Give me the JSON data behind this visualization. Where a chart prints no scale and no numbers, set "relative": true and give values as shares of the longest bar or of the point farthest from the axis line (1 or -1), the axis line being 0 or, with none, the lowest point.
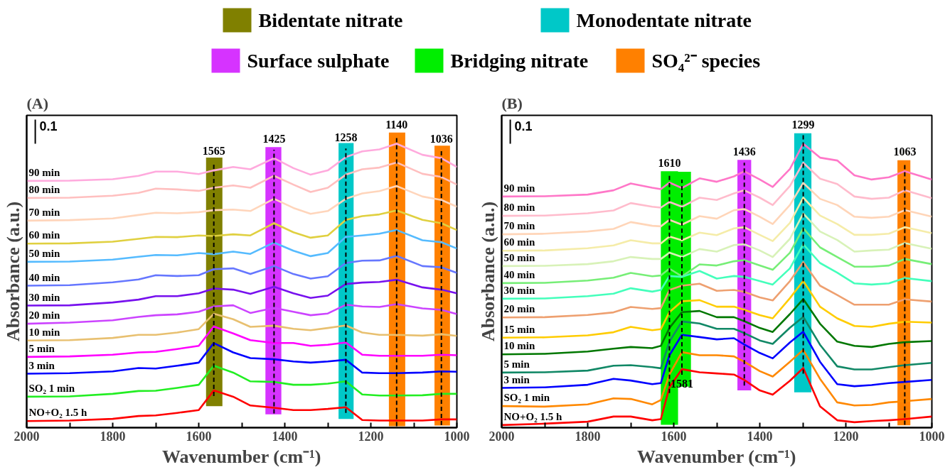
{
  "chart_data": [
    {
      "type": "line",
      "title": "(A)",
      "xlabel": "Wavenumber (cm⁻¹)",
      "ylabel": "Absorbance (a.u.)",
      "annotations": [
        "0.1"
      ],
      "relative": true,
      "grid": false,
      "legend": "top",
      "line_style": "solid",
      "xlim": [
        2000,
        1000
      ],
      "xticks": [
        2000,
        {
          "value": 1900,
          "label": null
        },
        1800,
        {
          "value": 1700,
          "label": null
        },
        1600,
        {
          "value": 1500,
          "label": null
        },
        1400,
        {
          "value": 1300,
          "label": null
        },
        1200,
        {
          "value": 1100,
          "label": null
        },
        1000
      ],
      "x": [
        2000,
        1900,
        1800,
        1740,
        1700,
        1650,
        1600,
        1565,
        1520,
        1480,
        1425,
        1380,
        1340,
        1300,
        1258,
        1220,
        1180,
        1140,
        1080,
        1036,
        1000
      ],
      "series": [
        {
          "name": "90 min",
          "color": "#ffaadd",
          "values": [
            0.869,
            0.87,
            0.875,
            0.887,
            0.902,
            0.902,
            0.893,
            0.906,
            0.918,
            0.91,
            0.949,
            0.914,
            0.891,
            0.906,
            0.953,
            0.973,
            0.98,
            1.0,
            0.961,
            0.949,
            0.918
          ]
        },
        {
          "name": "80 min",
          "color": "#ffbfbf",
          "values": [
            0.809,
            0.81,
            0.817,
            0.827,
            0.842,
            0.839,
            0.834,
            0.845,
            0.853,
            0.845,
            0.887,
            0.856,
            0.83,
            0.845,
            0.891,
            0.91,
            0.916,
            0.934,
            0.894,
            0.883,
            0.856
          ]
        },
        {
          "name": "70 min",
          "color": "#ffd5bb",
          "values": [
            0.729,
            0.731,
            0.737,
            0.749,
            0.757,
            0.755,
            0.759,
            0.766,
            0.768,
            0.763,
            0.806,
            0.774,
            0.753,
            0.763,
            0.806,
            0.825,
            0.833,
            0.851,
            0.814,
            0.802,
            0.778
          ]
        },
        {
          "name": "60 min",
          "color": "#e0d040",
          "values": [
            0.648,
            0.649,
            0.655,
            0.665,
            0.672,
            0.671,
            0.677,
            0.675,
            0.681,
            0.677,
            0.72,
            0.688,
            0.669,
            0.677,
            0.732,
            0.745,
            0.751,
            0.765,
            0.732,
            0.72,
            0.696
          ]
        },
        {
          "name": "50 min",
          "color": "#55bbff",
          "values": [
            0.584,
            0.585,
            0.592,
            0.602,
            0.608,
            0.607,
            0.615,
            0.611,
            0.62,
            0.612,
            0.652,
            0.623,
            0.604,
            0.615,
            0.672,
            0.677,
            0.683,
            0.696,
            0.66,
            0.653,
            0.631
          ]
        },
        {
          "name": "40 min",
          "color": "#6677ff",
          "values": [
            0.5,
            0.502,
            0.512,
            0.522,
            0.537,
            0.534,
            0.537,
            0.558,
            0.561,
            0.541,
            0.569,
            0.541,
            0.525,
            0.533,
            0.58,
            0.588,
            0.589,
            0.605,
            0.569,
            0.565,
            0.545
          ]
        },
        {
          "name": "30 min",
          "color": "#7711ee",
          "values": [
            0.43,
            0.431,
            0.441,
            0.451,
            0.463,
            0.463,
            0.473,
            0.49,
            0.486,
            0.471,
            0.496,
            0.473,
            0.457,
            0.465,
            0.506,
            0.511,
            0.513,
            0.521,
            0.494,
            0.486,
            0.473
          ]
        },
        {
          "name": "20 min",
          "color": "#cc44ff",
          "values": [
            0.366,
            0.37,
            0.378,
            0.39,
            0.396,
            0.399,
            0.408,
            0.427,
            0.431,
            0.404,
            0.422,
            0.408,
            0.396,
            0.402,
            0.433,
            0.427,
            0.425,
            0.435,
            0.42,
            0.415,
            0.4
          ]
        },
        {
          "name": "10 min",
          "color": "#e8c070",
          "values": [
            0.307,
            0.308,
            0.316,
            0.327,
            0.327,
            0.335,
            0.347,
            0.401,
            0.382,
            0.355,
            0.359,
            0.348,
            0.343,
            0.351,
            0.36,
            0.335,
            0.327,
            0.327,
            0.324,
            0.329,
            0.323
          ]
        },
        {
          "name": "5 min",
          "color": "#ff00ff",
          "values": [
            0.249,
            0.251,
            0.257,
            0.265,
            0.267,
            0.277,
            0.288,
            0.356,
            0.332,
            0.308,
            0.298,
            0.298,
            0.288,
            0.292,
            0.3,
            0.257,
            0.253,
            0.253,
            0.253,
            0.257,
            0.255
          ]
        },
        {
          "name": "3 min",
          "color": "#0000ff",
          "values": [
            0.19,
            0.192,
            0.198,
            0.21,
            0.208,
            0.218,
            0.229,
            0.298,
            0.265,
            0.245,
            0.241,
            0.233,
            0.229,
            0.233,
            0.239,
            0.194,
            0.192,
            0.192,
            0.194,
            0.198,
            0.197
          ]
        },
        {
          "name": "SO₂ 1 min",
          "color": "#22ee22",
          "values": [
            0.109,
            0.11,
            0.119,
            0.129,
            0.13,
            0.14,
            0.151,
            0.218,
            0.194,
            0.163,
            0.161,
            0.151,
            0.151,
            0.155,
            0.163,
            0.117,
            0.113,
            0.113,
            0.114,
            0.119,
            0.119
          ]
        },
        {
          "name": "NO+O₂ 1.5 h",
          "color": "#ff0000",
          "values": [
            0.023,
            0.025,
            0.031,
            0.041,
            0.043,
            0.052,
            0.062,
            0.131,
            0.109,
            0.078,
            0.07,
            0.062,
            0.062,
            0.066,
            0.072,
            0.027,
            0.025,
            0.025,
            0.025,
            0.029,
            0.029
          ]
        }
      ],
      "bands": [
        {
          "axis": "x",
          "from": 1583,
          "to": 1545,
          "label": "Bidentate nitrate",
          "color": "#808000"
        },
        {
          "axis": "x",
          "from": 1275,
          "to": 1240,
          "label": "Monodentate nitrate",
          "color": "#00c8c8"
        },
        {
          "axis": "x",
          "from": 1445,
          "to": 1408,
          "label": "Surface sulphate",
          "color": "#d633ff"
        },
        {
          "axis": "x",
          "from": 1158,
          "to": 1120,
          "color": "#ff8000"
        },
        {
          "axis": "x",
          "from": 1052,
          "to": 1016,
          "color": "#ff8000"
        }
      ],
      "ref_lines": [
        {
          "axis": "x",
          "value": 1565,
          "label": "1565",
          "color": "#000000",
          "line_style": "dashed"
        },
        {
          "axis": "x",
          "value": 1425,
          "label": "1425",
          "color": "#000000",
          "line_style": "dashed"
        },
        {
          "axis": "x",
          "value": 1258,
          "label": "1258",
          "color": "#000000",
          "line_style": "dashed"
        },
        {
          "axis": "x",
          "value": 1140,
          "label": "1140",
          "color": "#000000",
          "line_style": "dashed"
        },
        {
          "axis": "x",
          "value": 1036,
          "label": "1036",
          "color": "#000000",
          "line_style": "dashed"
        }
      ]
    },
    {
      "type": "line",
      "title": "(B)",
      "xlabel": "Wavenumber (cm⁻¹)",
      "ylabel": "Absorbance (a.u.)",
      "annotations": [
        "0.1"
      ],
      "relative": true,
      "grid": false,
      "legend": "top",
      "line_style": "solid",
      "xlim": [
        2000,
        1000
      ],
      "xticks": [
        2000,
        {
          "value": 1900,
          "label": null
        },
        1800,
        {
          "value": 1700,
          "label": null
        },
        1600,
        {
          "value": 1500,
          "label": null
        },
        1400,
        {
          "value": 1300,
          "label": null
        },
        1200,
        {
          "value": 1100,
          "label": null
        },
        1000
      ],
      "x": [
        2000,
        1900,
        1800,
        1740,
        1700,
        1650,
        1630,
        1610,
        1581,
        1540,
        1500,
        1460,
        1436,
        1400,
        1370,
        1330,
        1299,
        1260,
        1220,
        1180,
        1140,
        1100,
        1063,
        1000
      ],
      "series": [
        {
          "name": "90 min",
          "color": "#ff77c8",
          "values": [
            0.814,
            0.815,
            0.821,
            0.836,
            0.86,
            0.845,
            0.84,
            0.863,
            0.844,
            0.878,
            0.866,
            0.885,
            0.903,
            0.874,
            0.848,
            0.911,
            1.0,
            0.951,
            0.941,
            0.889,
            0.874,
            0.882,
            0.903,
            0.874
          ]
        },
        {
          "name": "80 min",
          "color": "#ffbbcc",
          "values": [
            0.746,
            0.747,
            0.755,
            0.765,
            0.791,
            0.778,
            0.775,
            0.795,
            0.778,
            0.81,
            0.802,
            0.825,
            0.836,
            0.81,
            0.784,
            0.851,
            0.933,
            0.877,
            0.858,
            0.814,
            0.806,
            0.81,
            0.836,
            0.808
          ]
        },
        {
          "name": "70 min",
          "color": "#ffd5b8",
          "values": [
            0.681,
            0.683,
            0.691,
            0.7,
            0.724,
            0.711,
            0.709,
            0.732,
            0.715,
            0.745,
            0.736,
            0.766,
            0.77,
            0.743,
            0.717,
            0.784,
            0.862,
            0.806,
            0.784,
            0.743,
            0.739,
            0.743,
            0.766,
            0.743
          ]
        },
        {
          "name": "60 min",
          "color": "#f5eca8",
          "values": [
            0.623,
            0.624,
            0.632,
            0.642,
            0.66,
            0.649,
            0.649,
            0.673,
            0.66,
            0.687,
            0.678,
            0.702,
            0.706,
            0.679,
            0.657,
            0.721,
            0.81,
            0.747,
            0.717,
            0.679,
            0.679,
            0.683,
            0.706,
            0.685
          ]
        },
        {
          "name": "50 min",
          "color": "#d8f2b8",
          "values": [
            0.569,
            0.57,
            0.576,
            0.586,
            0.601,
            0.594,
            0.594,
            0.616,
            0.601,
            0.629,
            0.62,
            0.643,
            0.646,
            0.624,
            0.601,
            0.665,
            0.754,
            0.691,
            0.661,
            0.62,
            0.624,
            0.627,
            0.65,
            0.63
          ]
        },
        {
          "name": "40 min",
          "color": "#77ee77",
          "values": [
            0.509,
            0.51,
            0.518,
            0.528,
            0.545,
            0.533,
            0.536,
            0.56,
            0.533,
            0.575,
            0.571,
            0.586,
            0.59,
            0.571,
            0.556,
            0.616,
            0.702,
            0.635,
            0.601,
            0.567,
            0.567,
            0.571,
            0.594,
            0.576
          ]
        },
        {
          "name": "30 min",
          "color": "#44ffbb",
          "values": [
            0.454,
            0.455,
            0.463,
            0.472,
            0.491,
            0.479,
            0.485,
            0.534,
            0.531,
            0.552,
            0.525,
            0.534,
            0.531,
            0.516,
            0.504,
            0.561,
            0.646,
            0.58,
            0.546,
            0.508,
            0.504,
            0.508,
            0.527,
            0.516
          ]
        },
        {
          "name": "20 min",
          "color": "#eea070",
          "values": [
            0.388,
            0.389,
            0.397,
            0.406,
            0.425,
            0.418,
            0.421,
            0.485,
            0.5,
            0.507,
            0.482,
            0.485,
            0.478,
            0.459,
            0.448,
            0.516,
            0.583,
            0.5,
            0.467,
            0.433,
            0.433,
            0.433,
            0.452,
            0.444
          ]
        },
        {
          "name": "15 min",
          "color": "#ffcc00",
          "values": [
            0.317,
            0.318,
            0.325,
            0.336,
            0.355,
            0.343,
            0.347,
            0.407,
            0.445,
            0.449,
            0.426,
            0.426,
            0.415,
            0.396,
            0.385,
            0.456,
            0.517,
            0.426,
            0.385,
            0.358,
            0.355,
            0.366,
            0.373,
            0.37
          ]
        },
        {
          "name": "10 min",
          "color": "#007700",
          "values": [
            0.258,
            0.26,
            0.268,
            0.278,
            0.284,
            0.28,
            0.288,
            0.351,
            0.407,
            0.411,
            0.389,
            0.389,
            0.375,
            0.351,
            0.337,
            0.4,
            0.453,
            0.366,
            0.303,
            0.288,
            0.284,
            0.295,
            0.301,
            0.305
          ]
        },
        {
          "name": "5 min",
          "color": "#118866",
          "values": [
            0.194,
            0.195,
            0.201,
            0.218,
            0.22,
            0.213,
            0.209,
            0.303,
            0.374,
            0.367,
            0.348,
            0.348,
            0.333,
            0.307,
            0.295,
            0.352,
            0.39,
            0.292,
            0.216,
            0.205,
            0.205,
            0.213,
            0.22,
            0.228
          ]
        },
        {
          "name": "3 min",
          "color": "#0000ff",
          "values": [
            0.14,
            0.142,
            0.151,
            0.172,
            0.166,
            0.153,
            0.157,
            0.255,
            0.327,
            0.319,
            0.311,
            0.315,
            0.293,
            0.263,
            0.244,
            0.3,
            0.338,
            0.232,
            0.153,
            0.146,
            0.15,
            0.157,
            0.161,
            0.168
          ]
        },
        {
          "name": "SO₂ 1 min",
          "color": "#ff8800",
          "values": [
            0.076,
            0.074,
            0.082,
            0.103,
            0.101,
            0.082,
            0.097,
            0.187,
            0.266,
            0.255,
            0.255,
            0.251,
            0.232,
            0.199,
            0.18,
            0.232,
            0.274,
            0.172,
            0.089,
            0.078,
            0.08,
            0.089,
            0.093,
            0.101
          ]
        },
        {
          "name": "NO+O₂ 1.5 h",
          "color": "#ff0000",
          "values": [
            0.009,
            0.014,
            0.021,
            0.039,
            0.039,
            0.026,
            0.03,
            0.142,
            0.206,
            0.195,
            0.191,
            0.187,
            0.168,
            0.131,
            0.116,
            0.165,
            0.21,
            0.075,
            0.026,
            0.019,
            0.023,
            0.026,
            0.03,
            0.039
          ]
        }
      ],
      "bands": [
        {
          "axis": "x",
          "from": 1630,
          "to": 1590,
          "label": "Bridging nitrate",
          "color": "#00ee00"
        },
        {
          "axis": "x",
          "from": 1600,
          "to": 1560,
          "color": "#00ee00"
        },
        {
          "axis": "x",
          "from": 1452,
          "to": 1420,
          "color": "#d633ff"
        },
        {
          "axis": "x",
          "from": 1320,
          "to": 1280,
          "color": "#00c8c8"
        },
        {
          "axis": "x",
          "from": 1080,
          "to": 1050,
          "label": "SO₄²⁻ species",
          "color": "#ff8000"
        }
      ],
      "ref_lines": [
        {
          "axis": "x",
          "value": 1610,
          "label": "1610",
          "color": "#000000",
          "line_style": "dashed"
        },
        {
          "axis": "x",
          "value": 1581,
          "label": "1581",
          "color": "#000000",
          "line_style": "dashed"
        },
        {
          "axis": "x",
          "value": 1436,
          "label": "1436",
          "color": "#000000",
          "line_style": "dashed"
        },
        {
          "axis": "x",
          "value": 1299,
          "label": "1299",
          "color": "#000000",
          "line_style": "dashed"
        },
        {
          "axis": "x",
          "value": 1063,
          "label": "1063",
          "color": "#000000",
          "line_style": "dashed"
        }
      ]
    }
  ]
}
